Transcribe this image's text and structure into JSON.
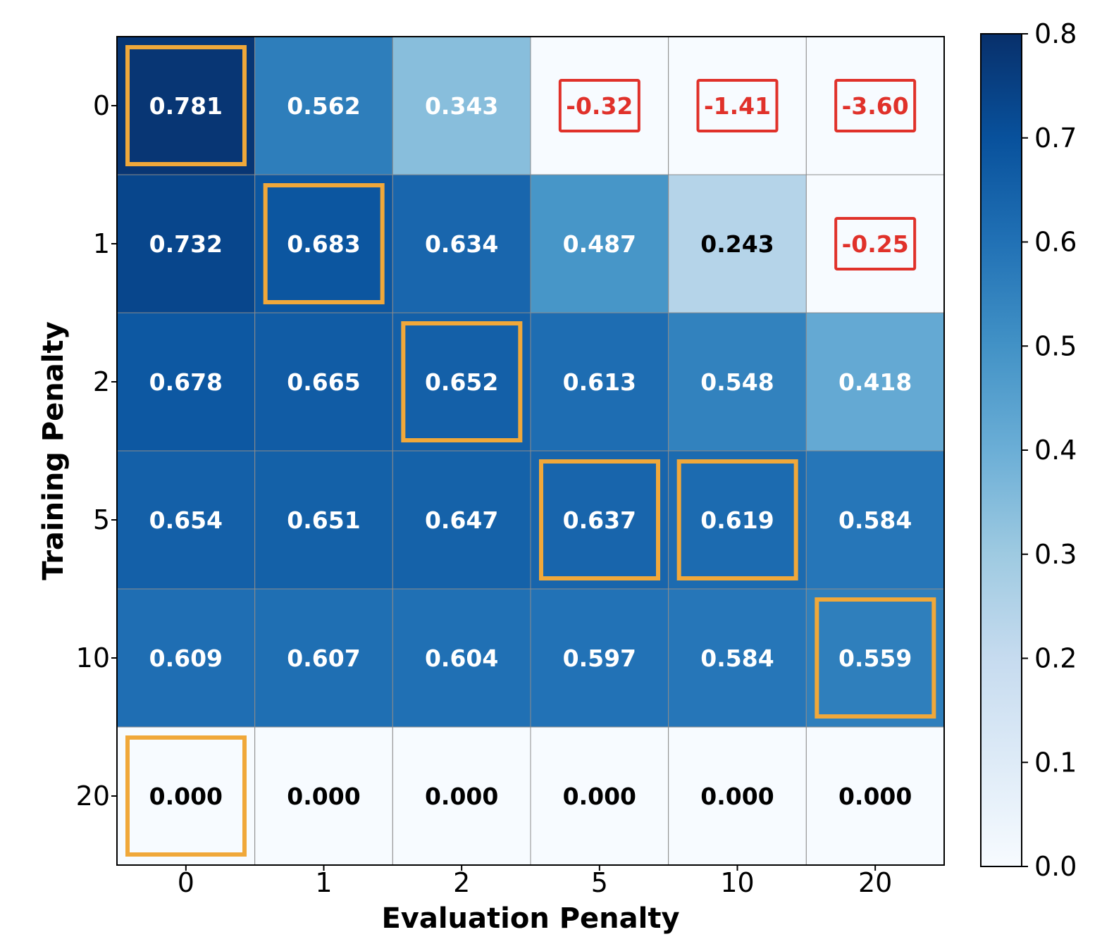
{
  "chart_data": {
    "type": "heatmap",
    "title": "",
    "xlabel": "Evaluation Penalty",
    "ylabel": "Training Penalty",
    "x_categories": [
      "0",
      "1",
      "2",
      "5",
      "10",
      "20"
    ],
    "y_categories": [
      "0",
      "1",
      "2",
      "5",
      "10",
      "20"
    ],
    "values": [
      [
        0.781,
        0.562,
        0.343,
        -0.32,
        -1.41,
        -3.6
      ],
      [
        0.732,
        0.683,
        0.634,
        0.487,
        0.243,
        -0.25
      ],
      [
        0.678,
        0.665,
        0.652,
        0.613,
        0.548,
        0.418
      ],
      [
        0.654,
        0.651,
        0.647,
        0.637,
        0.619,
        0.584
      ],
      [
        0.609,
        0.607,
        0.604,
        0.597,
        0.584,
        0.559
      ],
      [
        0.0,
        0.0,
        0.0,
        0.0,
        0.0,
        0.0
      ]
    ],
    "value_labels": [
      [
        "0.781",
        "0.562",
        "0.343",
        "-0.32",
        "-1.41",
        "-3.60"
      ],
      [
        "0.732",
        "0.683",
        "0.634",
        "0.487",
        "0.243",
        "-0.25"
      ],
      [
        "0.678",
        "0.665",
        "0.652",
        "0.613",
        "0.548",
        "0.418"
      ],
      [
        "0.654",
        "0.651",
        "0.647",
        "0.637",
        "0.619",
        "0.584"
      ],
      [
        "0.609",
        "0.607",
        "0.604",
        "0.597",
        "0.584",
        "0.559"
      ],
      [
        "0.000",
        "0.000",
        "0.000",
        "0.000",
        "0.000",
        "0.000"
      ]
    ],
    "colorbar": {
      "min": 0.0,
      "max": 0.8,
      "ticks": [
        "0.0",
        "0.1",
        "0.2",
        "0.3",
        "0.4",
        "0.5",
        "0.6",
        "0.7",
        "0.8"
      ],
      "colormap": "Blues"
    },
    "highlighted_cells": [
      [
        0,
        0
      ],
      [
        1,
        1
      ],
      [
        2,
        2
      ],
      [
        3,
        3
      ],
      [
        3,
        4
      ],
      [
        4,
        5
      ],
      [
        5,
        0
      ]
    ],
    "negative_cells": [
      [
        0,
        3
      ],
      [
        0,
        4
      ],
      [
        0,
        5
      ],
      [
        1,
        5
      ]
    ],
    "colors": {
      "highlight_box": "#f0a83a",
      "negative_box": "#e0312a",
      "grid": "#8c8c8c"
    }
  }
}
